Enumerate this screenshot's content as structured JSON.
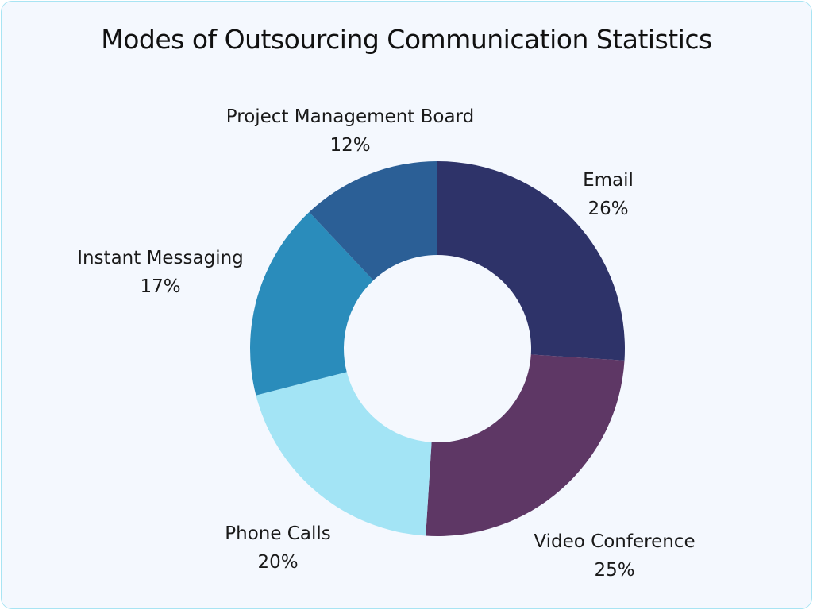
{
  "chart_data": {
    "type": "pie",
    "donut": true,
    "title": "Modes of Outsourcing Communication Statistics",
    "slices": [
      {
        "label": "Email",
        "value": 26,
        "value_label": "26%",
        "color": "#2e3369"
      },
      {
        "label": "Video Conference",
        "value": 25,
        "value_label": "25%",
        "color": "#5e3765"
      },
      {
        "label": "Phone Calls",
        "value": 20,
        "value_label": "20%",
        "color": "#a3e4f5"
      },
      {
        "label": "Instant Messaging",
        "value": 17,
        "value_label": "17%",
        "color": "#2a8cbb"
      },
      {
        "label": "Project Management Board",
        "value": 12,
        "value_label": "12%",
        "color": "#2b5f96"
      }
    ],
    "start": "top",
    "direction": "clockwise",
    "legend": "none"
  }
}
